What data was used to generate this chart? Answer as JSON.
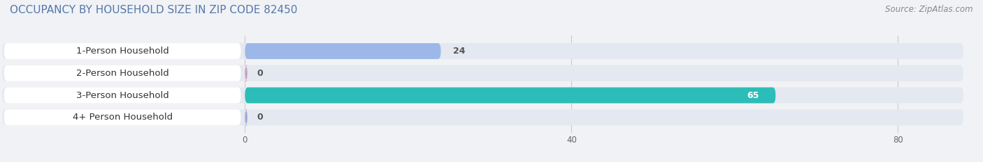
{
  "title": "OCCUPANCY BY HOUSEHOLD SIZE IN ZIP CODE 82450",
  "source": "Source: ZipAtlas.com",
  "categories": [
    "1-Person Household",
    "2-Person Household",
    "3-Person Household",
    "4+ Person Household"
  ],
  "values": [
    24,
    0,
    65,
    0
  ],
  "bar_colors": [
    "#9db8e8",
    "#c9a0c0",
    "#2dbdb8",
    "#a0a8d8"
  ],
  "bar_background_color": "#e4e8f0",
  "label_bg_color": "#ffffff",
  "xlim_data": [
    0,
    88
  ],
  "xticks": [
    0,
    40,
    80
  ],
  "title_fontsize": 11,
  "label_fontsize": 9.5,
  "value_fontsize": 9,
  "source_fontsize": 8.5,
  "bar_height": 0.72,
  "fig_bg": "#f0f2f5",
  "title_color": "#5577aa",
  "source_color": "#888888",
  "label_color": "#333333",
  "value_color_dark": "#555555",
  "value_color_light": "#ffffff"
}
